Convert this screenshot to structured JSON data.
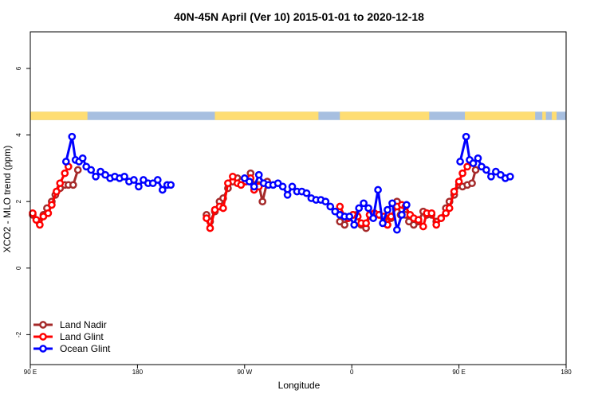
{
  "chart_data": {
    "type": "line",
    "title": "40N-45N April (Ver 10)   2015-01-01 to 2020-12-18",
    "xlabel": "Longitude",
    "ylabel": "XCO2 - MLO trend (ppm)",
    "xlim": [
      90,
      540
    ],
    "ylim": [
      -2.9,
      7.1
    ],
    "x_ticks": [
      {
        "value": 90,
        "label": "90 E"
      },
      {
        "value": 180,
        "label": "180"
      },
      {
        "value": 270,
        "label": "90 W"
      },
      {
        "value": 360,
        "label": "0"
      },
      {
        "value": 450,
        "label": "90 E"
      },
      {
        "value": 540,
        "label": "180"
      }
    ],
    "y_ticks": [
      {
        "value": -2,
        "label": "-2"
      },
      {
        "value": 0,
        "label": "0"
      },
      {
        "value": 2,
        "label": "2"
      },
      {
        "value": 4,
        "label": "4"
      },
      {
        "value": 6,
        "label": "6"
      }
    ],
    "grid": false,
    "legend_position": "bottom-left",
    "land_ocean_strip": {
      "y_range": [
        4.45,
        4.7
      ],
      "ocean_color": "#a7bfe0",
      "land_color": "#fedd73",
      "land_spans": [
        [
          90,
          138
        ],
        [
          245,
          332
        ],
        [
          350,
          425
        ],
        [
          455,
          514
        ],
        [
          520,
          523
        ],
        [
          528,
          532
        ]
      ]
    },
    "series": [
      {
        "name": "Land Nadir",
        "color": "#a52a2a",
        "points": [
          [
            92,
            1.6
          ],
          [
            97,
            1.4
          ],
          [
            101,
            1.6
          ],
          [
            104,
            1.8
          ],
          [
            108,
            2.0
          ],
          [
            111,
            2.2
          ],
          [
            115,
            2.4
          ],
          [
            119,
            2.5
          ],
          [
            122,
            2.5
          ],
          [
            126,
            2.5
          ],
          [
            130,
            2.95
          ],
          [
            null,
            null
          ],
          [
            238,
            1.6
          ],
          [
            241,
            1.4
          ],
          [
            245,
            1.7
          ],
          [
            249,
            2.0
          ],
          [
            252,
            2.1
          ],
          [
            256,
            2.4
          ],
          [
            260,
            2.6
          ],
          [
            264,
            2.7
          ],
          [
            267,
            2.6
          ],
          [
            271,
            2.6
          ],
          [
            275,
            2.85
          ],
          [
            278,
            2.5
          ],
          [
            282,
            2.5
          ],
          [
            285,
            2.0
          ],
          [
            289,
            2.6
          ],
          [
            null,
            null
          ],
          [
            350,
            1.4
          ],
          [
            354,
            1.3
          ],
          [
            357,
            1.5
          ],
          [
            361,
            1.6
          ],
          [
            364,
            1.6
          ],
          [
            368,
            1.3
          ],
          [
            372,
            1.2
          ],
          [
            375,
            1.6
          ],
          [
            379,
            1.6
          ],
          [
            383,
            1.6
          ],
          [
            387,
            1.5
          ],
          [
            390,
            1.3
          ],
          [
            393,
            1.5
          ],
          [
            398,
            2.0
          ],
          [
            401,
            1.6
          ],
          [
            405,
            1.6
          ],
          [
            408,
            1.4
          ],
          [
            412,
            1.3
          ],
          [
            416,
            1.4
          ],
          [
            420,
            1.7
          ],
          [
            423,
            1.6
          ],
          [
            427,
            1.6
          ],
          [
            431,
            1.4
          ],
          [
            435,
            1.5
          ],
          [
            439,
            1.8
          ],
          [
            442,
            2.0
          ],
          [
            446,
            2.2
          ],
          [
            450,
            2.5
          ],
          [
            453,
            2.45
          ],
          [
            457,
            2.5
          ],
          [
            461,
            2.55
          ],
          [
            464,
            2.95
          ]
        ]
      },
      {
        "name": "Land Glint",
        "color": "#ff0000",
        "points": [
          [
            92,
            1.65
          ],
          [
            95,
            1.45
          ],
          [
            98,
            1.3
          ],
          [
            101,
            1.55
          ],
          [
            105,
            1.65
          ],
          [
            108,
            1.9
          ],
          [
            112,
            2.3
          ],
          [
            115,
            2.55
          ],
          [
            119,
            2.85
          ],
          [
            122,
            3.05
          ],
          [
            null,
            null
          ],
          [
            238,
            1.5
          ],
          [
            241,
            1.2
          ],
          [
            245,
            1.75
          ],
          [
            249,
            1.85
          ],
          [
            252,
            1.8
          ],
          [
            256,
            2.55
          ],
          [
            260,
            2.75
          ],
          [
            264,
            2.55
          ],
          [
            267,
            2.5
          ],
          [
            271,
            2.6
          ],
          [
            275,
            2.7
          ],
          [
            278,
            2.35
          ],
          [
            282,
            2.45
          ],
          [
            null,
            null
          ],
          [
            350,
            1.85
          ],
          [
            354,
            1.55
          ],
          [
            357,
            1.5
          ],
          [
            361,
            1.6
          ],
          [
            365,
            1.55
          ],
          [
            368,
            1.35
          ],
          [
            372,
            1.35
          ],
          [
            375,
            1.6
          ],
          [
            379,
            1.65
          ],
          [
            383,
            1.6
          ],
          [
            387,
            1.55
          ],
          [
            390,
            1.3
          ],
          [
            393,
            1.55
          ],
          [
            398,
            1.85
          ],
          [
            402,
            1.9
          ],
          [
            405,
            1.85
          ],
          [
            409,
            1.6
          ],
          [
            412,
            1.5
          ],
          [
            416,
            1.45
          ],
          [
            420,
            1.25
          ],
          [
            423,
            1.65
          ],
          [
            427,
            1.65
          ],
          [
            431,
            1.3
          ],
          [
            435,
            1.5
          ],
          [
            439,
            1.65
          ],
          [
            442,
            1.8
          ],
          [
            446,
            2.3
          ],
          [
            450,
            2.6
          ],
          [
            453,
            2.85
          ],
          [
            457,
            3.05
          ]
        ]
      },
      {
        "name": "Ocean Glint",
        "color": "#0000ff",
        "points": [
          [
            120,
            3.2
          ],
          [
            125,
            3.95
          ],
          [
            128,
            3.25
          ],
          [
            131,
            3.2
          ],
          [
            134,
            3.3
          ],
          [
            137,
            3.05
          ],
          [
            141,
            2.95
          ],
          [
            145,
            2.75
          ],
          [
            149,
            2.9
          ],
          [
            153,
            2.8
          ],
          [
            157,
            2.7
          ],
          [
            161,
            2.75
          ],
          [
            165,
            2.7
          ],
          [
            169,
            2.75
          ],
          [
            173,
            2.6
          ],
          [
            177,
            2.65
          ],
          [
            181,
            2.45
          ],
          [
            185,
            2.65
          ],
          [
            189,
            2.55
          ],
          [
            193,
            2.55
          ],
          [
            197,
            2.65
          ],
          [
            201,
            2.35
          ],
          [
            205,
            2.5
          ],
          [
            208,
            2.5
          ],
          [
            null,
            null
          ],
          [
            270,
            2.7
          ],
          [
            274,
            2.6
          ],
          [
            278,
            2.45
          ],
          [
            282,
            2.8
          ],
          [
            286,
            2.55
          ],
          [
            290,
            2.5
          ],
          [
            294,
            2.5
          ],
          [
            298,
            2.55
          ],
          [
            302,
            2.45
          ],
          [
            306,
            2.2
          ],
          [
            310,
            2.45
          ],
          [
            314,
            2.3
          ],
          [
            318,
            2.3
          ],
          [
            322,
            2.25
          ],
          [
            326,
            2.1
          ],
          [
            330,
            2.05
          ],
          [
            334,
            2.05
          ],
          [
            338,
            2.0
          ],
          [
            342,
            1.85
          ],
          [
            346,
            1.7
          ],
          [
            350,
            1.6
          ],
          [
            354,
            1.55
          ],
          [
            358,
            1.55
          ],
          [
            362,
            1.3
          ],
          [
            366,
            1.8
          ],
          [
            370,
            1.95
          ],
          [
            374,
            1.8
          ],
          [
            378,
            1.5
          ],
          [
            382,
            2.35
          ],
          [
            386,
            1.35
          ],
          [
            390,
            1.75
          ],
          [
            394,
            1.95
          ],
          [
            398,
            1.15
          ],
          [
            402,
            1.6
          ],
          [
            406,
            1.9
          ],
          [
            null,
            null
          ],
          [
            451,
            3.2
          ],
          [
            456,
            3.95
          ],
          [
            459,
            3.25
          ],
          [
            462,
            3.15
          ],
          [
            466,
            3.3
          ],
          [
            469,
            3.05
          ],
          [
            473,
            2.95
          ],
          [
            477,
            2.75
          ],
          [
            481,
            2.9
          ],
          [
            485,
            2.8
          ],
          [
            489,
            2.7
          ],
          [
            493,
            2.75
          ]
        ]
      }
    ]
  }
}
